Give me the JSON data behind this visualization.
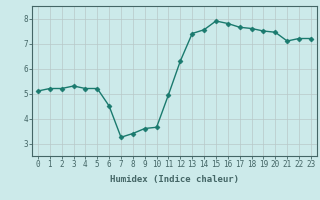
{
  "x": [
    0,
    1,
    2,
    3,
    4,
    5,
    6,
    7,
    8,
    9,
    10,
    11,
    12,
    13,
    14,
    15,
    16,
    17,
    18,
    19,
    20,
    21,
    22,
    23
  ],
  "y": [
    5.1,
    5.2,
    5.2,
    5.3,
    5.2,
    5.2,
    4.5,
    3.25,
    3.4,
    3.6,
    3.65,
    4.95,
    6.3,
    7.4,
    7.55,
    7.9,
    7.8,
    7.65,
    7.6,
    7.5,
    7.45,
    7.1,
    7.2,
    7.2
  ],
  "xlabel": "Humidex (Indice chaleur)",
  "ylim": [
    2.5,
    8.5
  ],
  "xlim": [
    -0.5,
    23.5
  ],
  "line_color": "#1a7a6e",
  "marker": "D",
  "marker_size": 2.5,
  "bg_color": "#cceaea",
  "grid_color": "#b8c8c8",
  "axis_color": "#446666",
  "yticks": [
    3,
    4,
    5,
    6,
    7,
    8
  ],
  "xticks": [
    0,
    1,
    2,
    3,
    4,
    5,
    6,
    7,
    8,
    9,
    10,
    11,
    12,
    13,
    14,
    15,
    16,
    17,
    18,
    19,
    20,
    21,
    22,
    23
  ],
  "tick_fontsize": 5.5,
  "xlabel_fontsize": 6.5
}
